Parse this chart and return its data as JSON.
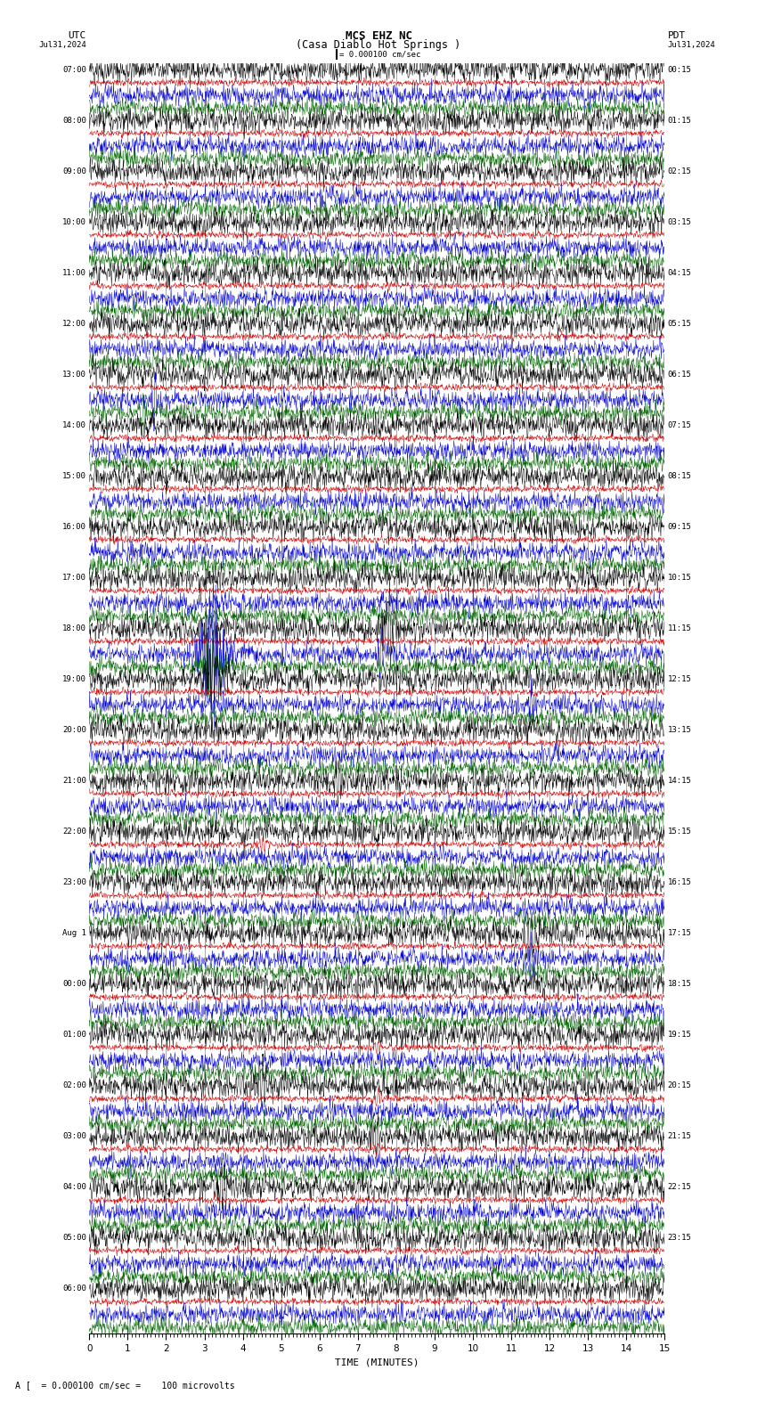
{
  "title_line1": "MCS EHZ NC",
  "title_line2": "(Casa Diablo Hot Springs )",
  "scale_label": "= 0.000100 cm/sec",
  "utc_label": "UTC",
  "pdt_label": "PDT",
  "date_left": "Jul31,2024",
  "date_right": "Jul31,2024",
  "footer_a": "A",
  "footer_text": "= 0.000100 cm/sec =    100 microvolts",
  "xlabel": "TIME (MINUTES)",
  "xlim": [
    0,
    15
  ],
  "xticks": [
    0,
    1,
    2,
    3,
    4,
    5,
    6,
    7,
    8,
    9,
    10,
    11,
    12,
    13,
    14,
    15
  ],
  "utc_times_left": [
    "07:00",
    "08:00",
    "09:00",
    "10:00",
    "11:00",
    "12:00",
    "13:00",
    "14:00",
    "15:00",
    "16:00",
    "17:00",
    "18:00",
    "19:00",
    "20:00",
    "21:00",
    "22:00",
    "23:00",
    "Aug 1",
    "00:00",
    "01:00",
    "02:00",
    "03:00",
    "04:00",
    "05:00",
    "06:00"
  ],
  "pdt_times_right": [
    "00:15",
    "01:15",
    "02:15",
    "03:15",
    "04:15",
    "05:15",
    "06:15",
    "07:15",
    "08:15",
    "09:15",
    "10:15",
    "11:15",
    "12:15",
    "13:15",
    "14:15",
    "15:15",
    "16:15",
    "17:15",
    "18:15",
    "19:15",
    "20:15",
    "21:15",
    "22:15",
    "23:15"
  ],
  "n_rows": 25,
  "n_channels": 4,
  "channel_colors": [
    "#000000",
    "#cc0000",
    "#0000cc",
    "#006600"
  ],
  "channel_noise_amps": [
    0.28,
    0.18,
    0.22,
    0.2
  ],
  "channel_noise_amps_red_flat": 0.08,
  "bg_color": "#ffffff",
  "seed": 42,
  "special_events": [
    {
      "row": 6,
      "channel": 2,
      "minute": 1.7,
      "amp": 5.0,
      "duration": 0.08
    },
    {
      "row": 6,
      "channel": 3,
      "minute": 1.4,
      "amp": 3.0,
      "duration": 0.12
    },
    {
      "row": 11,
      "channel": 2,
      "minute": 3.2,
      "amp": 8.0,
      "duration": 0.5
    },
    {
      "row": 11,
      "channel": 3,
      "minute": 3.2,
      "amp": 3.5,
      "duration": 0.4
    },
    {
      "row": 11,
      "channel": 0,
      "minute": 7.8,
      "amp": 3.5,
      "duration": 0.3
    },
    {
      "row": 11,
      "channel": 2,
      "minute": 7.6,
      "amp": 2.5,
      "duration": 0.2
    },
    {
      "row": 12,
      "channel": 0,
      "minute": 3.2,
      "amp": 3.0,
      "duration": 0.4
    },
    {
      "row": 12,
      "channel": 2,
      "minute": 11.5,
      "amp": 2.5,
      "duration": 0.15
    },
    {
      "row": 14,
      "channel": 0,
      "minute": 6.5,
      "amp": 2.0,
      "duration": 0.2
    },
    {
      "row": 15,
      "channel": 1,
      "minute": 4.5,
      "amp": 2.5,
      "duration": 0.25
    },
    {
      "row": 17,
      "channel": 0,
      "minute": 11.5,
      "amp": 2.5,
      "duration": 0.3
    },
    {
      "row": 17,
      "channel": 2,
      "minute": 11.5,
      "amp": 2.5,
      "duration": 0.3
    },
    {
      "row": 19,
      "channel": 1,
      "minute": 7.5,
      "amp": 2.0,
      "duration": 0.2
    },
    {
      "row": 20,
      "channel": 0,
      "minute": 4.5,
      "amp": 2.5,
      "duration": 0.3
    },
    {
      "row": 20,
      "channel": 1,
      "minute": 7.5,
      "amp": 2.5,
      "duration": 0.25
    },
    {
      "row": 21,
      "channel": 0,
      "minute": 7.5,
      "amp": 1.8,
      "duration": 0.2
    },
    {
      "row": 21,
      "channel": 1,
      "minute": 7.5,
      "amp": 1.5,
      "duration": 0.2
    },
    {
      "row": 22,
      "channel": 0,
      "minute": 3.5,
      "amp": 2.0,
      "duration": 0.3
    }
  ]
}
